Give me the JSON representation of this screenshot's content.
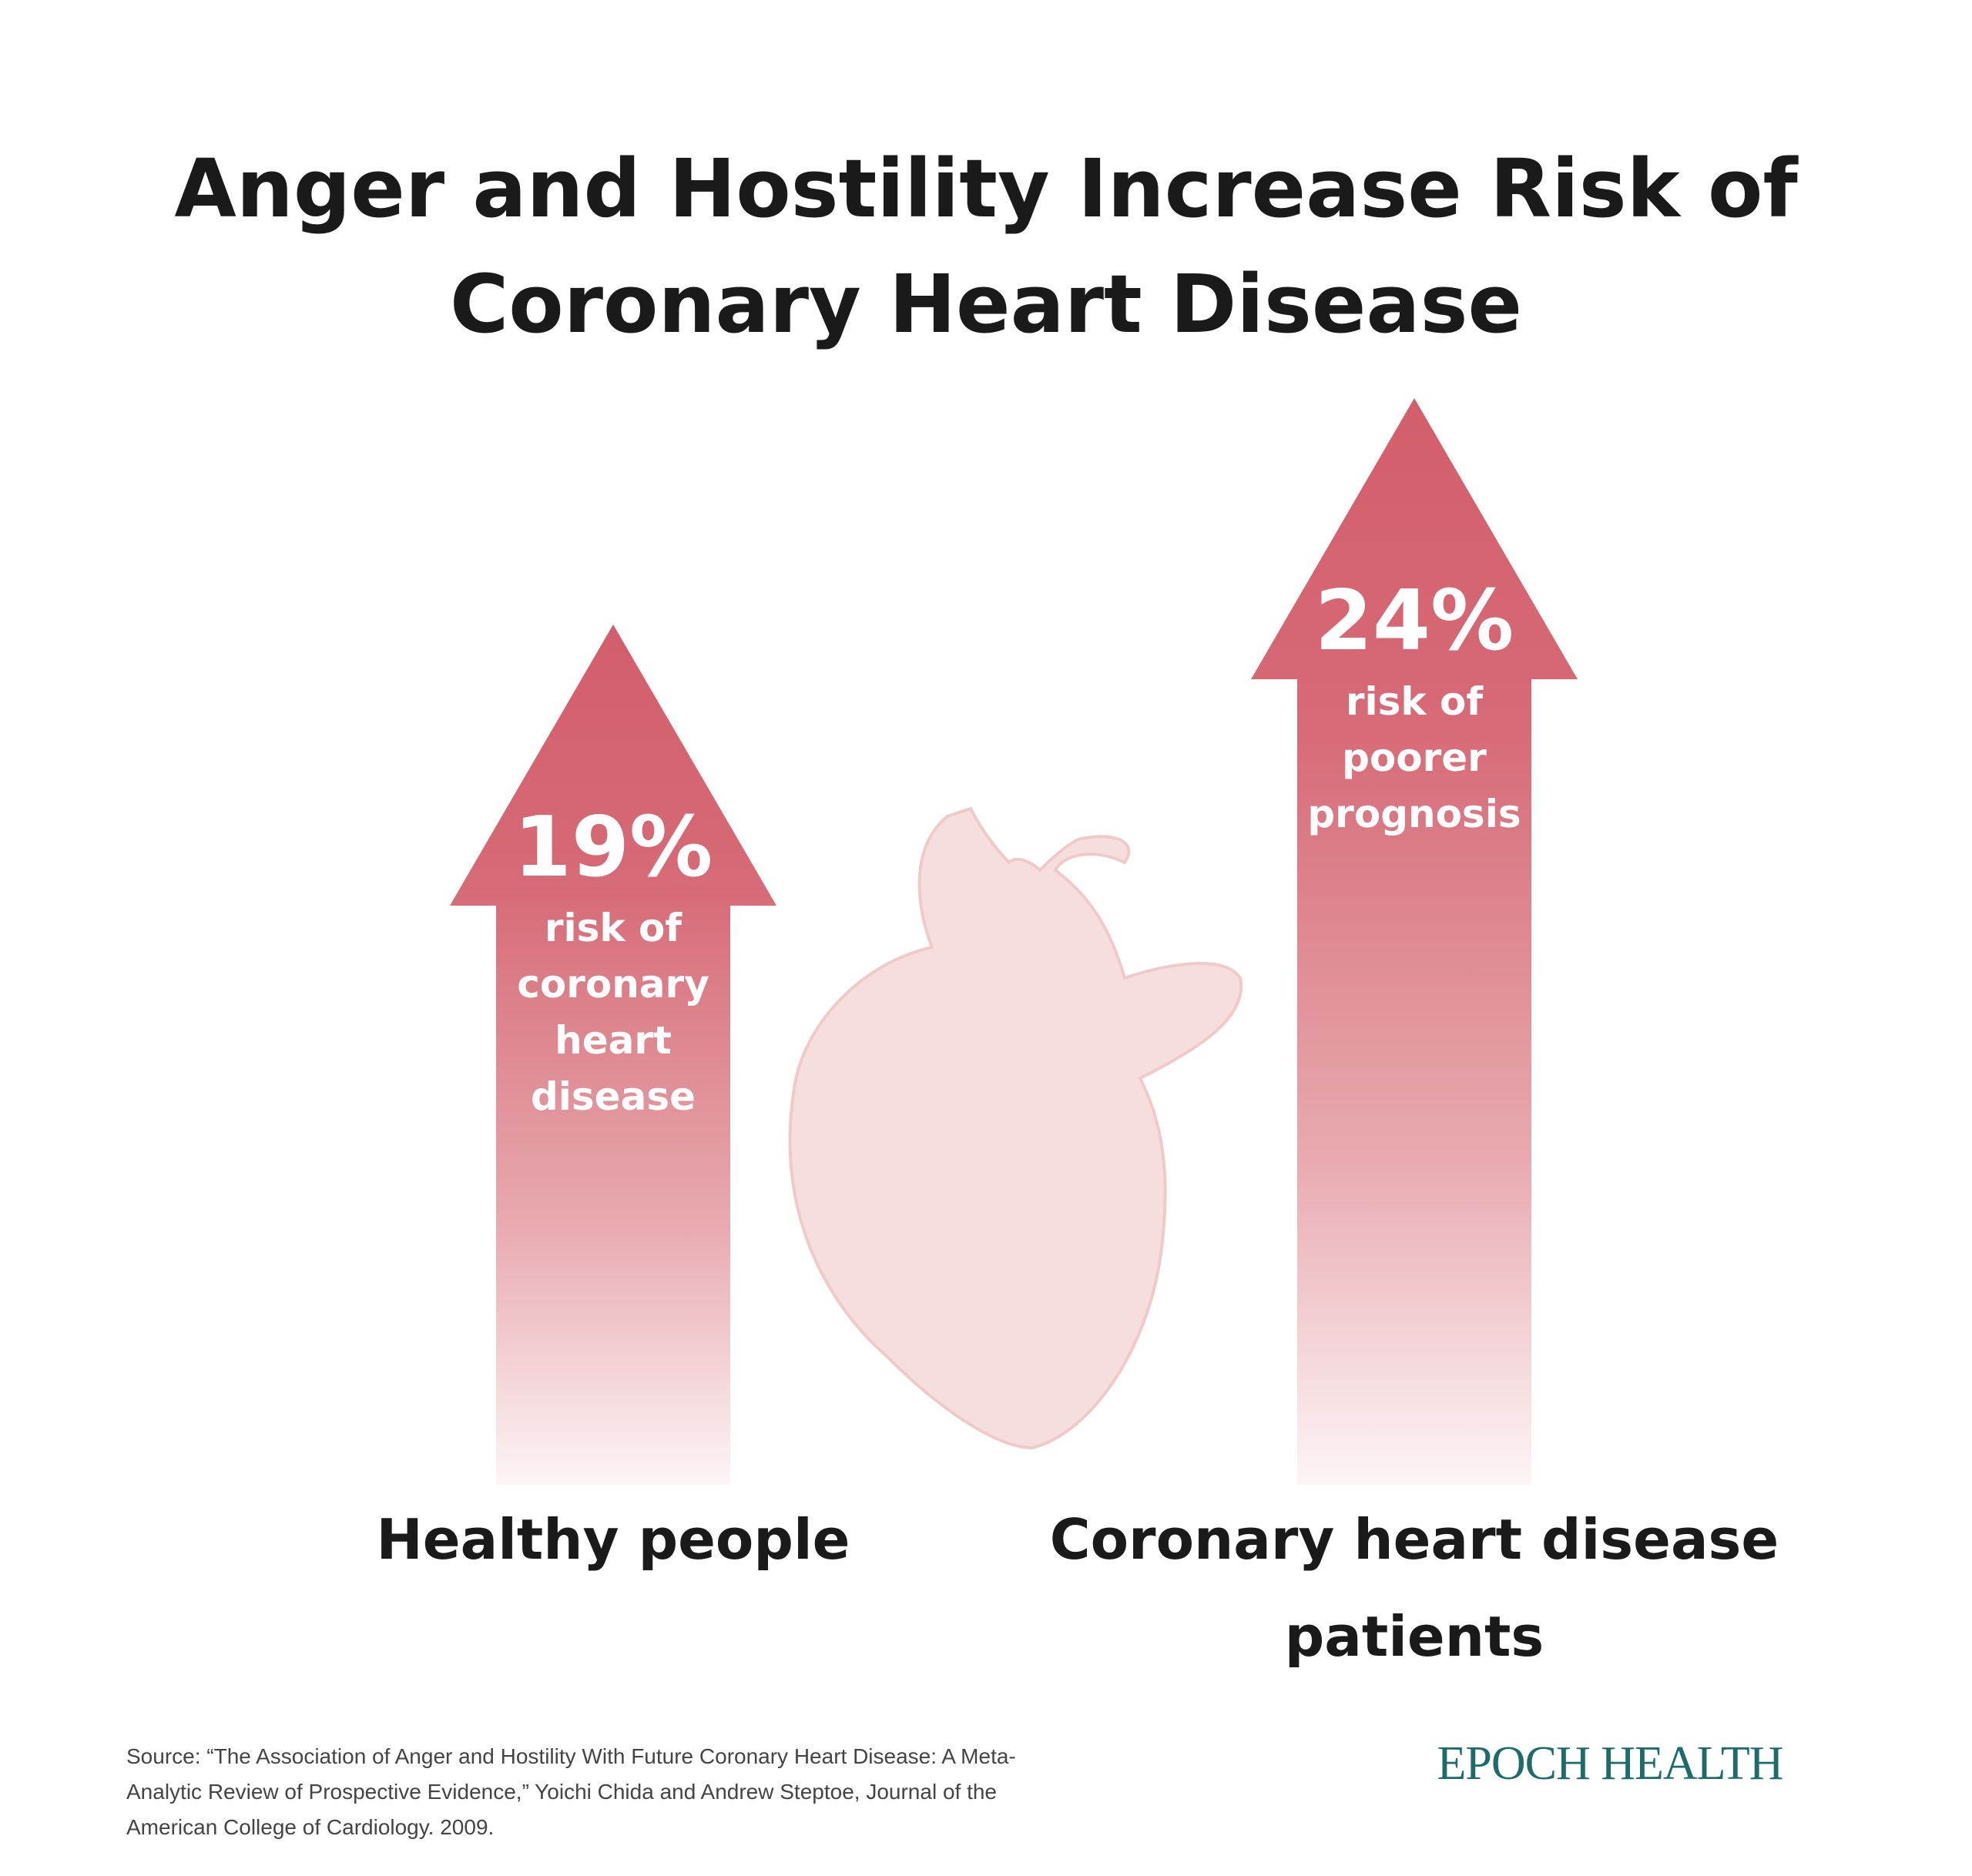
{
  "chart_data": {
    "type": "arrow",
    "title": "Anger and Hostility Increase Risk of Coronary Heart Disease",
    "categories": [
      "Healthy people",
      "Coronary heart disease patients"
    ],
    "values": [
      19,
      24
    ],
    "value_labels": [
      "19%",
      "24%"
    ],
    "descriptions": [
      "risk of coronary heart disease",
      "risk of poorer prognosis"
    ],
    "color": "#d35e6b",
    "source": "Source: “The Association of Anger and Hostility With Future Coronary Heart Disease: A Meta-Analytic Review of Prospective Evidence,” Yoichi Chida and Andrew Steptoe, Journal of the American College of Cardiology. 2009.",
    "brand": "EPOCH HEALTH"
  }
}
